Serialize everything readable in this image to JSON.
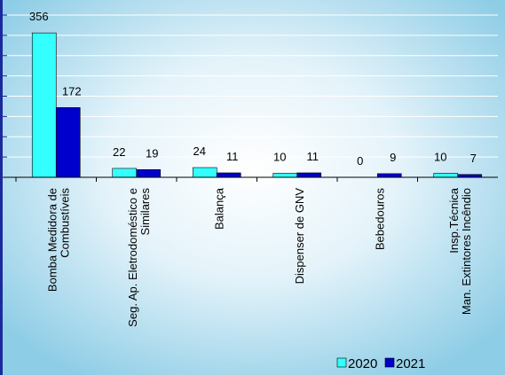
{
  "chart_data": {
    "type": "bar",
    "categories": [
      [
        "Bomba Medidora de",
        "Combustíveis"
      ],
      [
        "Seg. Ap. Eletrodoméstico e",
        "Similares"
      ],
      [
        "Balança"
      ],
      [
        "Dispenser de GNV"
      ],
      [
        "Bebedouros"
      ],
      [
        "Insp.Técnica",
        "Man. Extintores Incêndio"
      ]
    ],
    "series": [
      {
        "name": "2020",
        "color": "#33ffff",
        "values": [
          356,
          22,
          24,
          10,
          0,
          10
        ]
      },
      {
        "name": "2021",
        "color": "#0000cc",
        "values": [
          172,
          19,
          11,
          11,
          9,
          7
        ]
      }
    ],
    "ylim": [
      0,
      400
    ],
    "yticks": [
      0,
      50,
      100,
      150,
      200,
      250,
      300,
      350,
      400
    ],
    "grid": true
  }
}
